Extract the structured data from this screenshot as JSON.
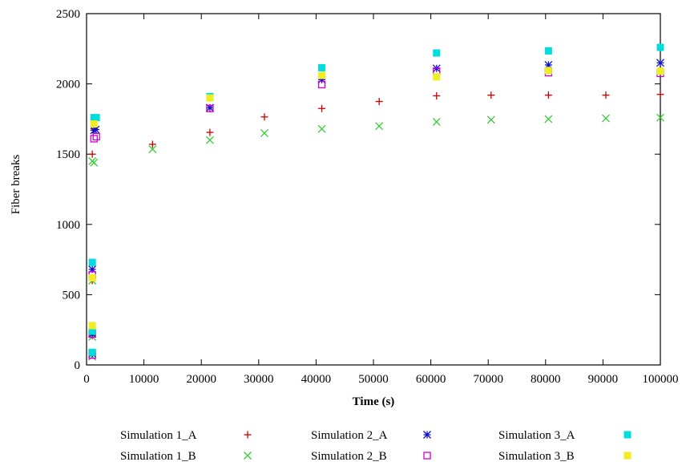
{
  "chart_data": {
    "type": "scatter",
    "xlabel": "Time (s)",
    "ylabel": "Fiber breaks",
    "xlim": [
      0,
      100000
    ],
    "ylim": [
      0,
      2500
    ],
    "xticks": [
      0,
      10000,
      20000,
      30000,
      40000,
      50000,
      60000,
      70000,
      80000,
      90000,
      100000
    ],
    "yticks": [
      0,
      500,
      1000,
      1500,
      2000,
      2500
    ],
    "grid": false,
    "legend_position": "bottom",
    "series": [
      {
        "name": "Simulation 1_A",
        "marker": "plus",
        "color": "#cc0000",
        "points": [
          [
            1000,
            210
          ],
          [
            1000,
            600
          ],
          [
            1000,
            1500
          ],
          [
            1300,
            1680
          ],
          [
            11500,
            1570
          ],
          [
            21500,
            1655
          ],
          [
            31000,
            1765
          ],
          [
            41000,
            1825
          ],
          [
            51000,
            1875
          ],
          [
            61000,
            1915
          ],
          [
            70500,
            1920
          ],
          [
            80500,
            1920
          ],
          [
            90500,
            1920
          ],
          [
            100000,
            1925
          ]
        ]
      },
      {
        "name": "Simulation 1_B",
        "marker": "cross",
        "color": "#33cc33",
        "points": [
          [
            1000,
            60
          ],
          [
            1000,
            200
          ],
          [
            1000,
            600
          ],
          [
            1000,
            1450
          ],
          [
            1300,
            1440
          ],
          [
            11500,
            1535
          ],
          [
            21500,
            1600
          ],
          [
            31000,
            1650
          ],
          [
            41000,
            1680
          ],
          [
            51000,
            1700
          ],
          [
            61000,
            1730
          ],
          [
            70500,
            1745
          ],
          [
            80500,
            1750
          ],
          [
            90500,
            1755
          ],
          [
            100000,
            1760
          ]
        ]
      },
      {
        "name": "Simulation 2_A",
        "marker": "star",
        "color": "#1111cc",
        "points": [
          [
            1000,
            80
          ],
          [
            1000,
            220
          ],
          [
            1000,
            680
          ],
          [
            1300,
            1670
          ],
          [
            1600,
            1675
          ],
          [
            21500,
            1830
          ],
          [
            41000,
            2030
          ],
          [
            61000,
            2110
          ],
          [
            80500,
            2135
          ],
          [
            100000,
            2150
          ]
        ]
      },
      {
        "name": "Simulation 2_B",
        "marker": "open-square",
        "color": "#cc00cc",
        "points": [
          [
            1000,
            70
          ],
          [
            1000,
            220
          ],
          [
            1000,
            640
          ],
          [
            1300,
            1610
          ],
          [
            1700,
            1625
          ],
          [
            21500,
            1825
          ],
          [
            41000,
            1995
          ],
          [
            61000,
            2090
          ],
          [
            80500,
            2080
          ],
          [
            100000,
            2075
          ]
        ]
      },
      {
        "name": "Simulation 3_A",
        "marker": "filled-square",
        "color": "#00dddd",
        "points": [
          [
            1000,
            90
          ],
          [
            1000,
            240
          ],
          [
            1000,
            730
          ],
          [
            1300,
            1760
          ],
          [
            1700,
            1760
          ],
          [
            21500,
            1910
          ],
          [
            41000,
            2115
          ],
          [
            61000,
            2220
          ],
          [
            80500,
            2235
          ],
          [
            100000,
            2260
          ]
        ]
      },
      {
        "name": "Simulation 3_B",
        "marker": "filled-square",
        "color": "#eeee22",
        "points": [
          [
            1000,
            280
          ],
          [
            1000,
            620
          ],
          [
            1300,
            1715
          ],
          [
            21500,
            1900
          ],
          [
            41000,
            2060
          ],
          [
            61000,
            2050
          ],
          [
            80500,
            2095
          ],
          [
            100000,
            2090
          ]
        ]
      }
    ]
  }
}
